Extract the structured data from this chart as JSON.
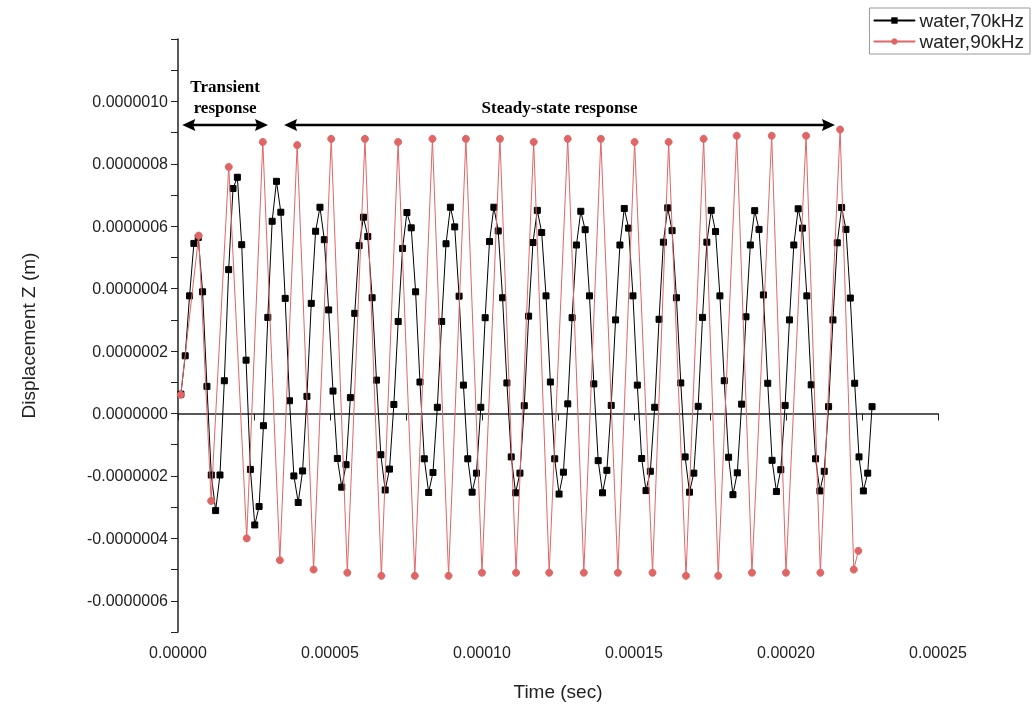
{
  "chart_data": {
    "type": "line",
    "xlabel": "Time (sec)",
    "ylabel": "Displacement Z (m)",
    "legend": "top right",
    "xlim": [
      0,
      0.00025
    ],
    "ylim": [
      -7e-07,
      1.2e-06
    ],
    "xticks": [
      {
        "value": 0,
        "label": "0.00000"
      },
      {
        "value": 2.5e-05,
        "label": null
      },
      {
        "value": 5e-05,
        "label": "0.00005"
      },
      {
        "value": 7.5e-05,
        "label": null
      },
      {
        "value": 0.0001,
        "label": "0.00010"
      },
      {
        "value": 0.000125,
        "label": null
      },
      {
        "value": 0.00015,
        "label": "0.00015"
      },
      {
        "value": 0.000175,
        "label": null
      },
      {
        "value": 0.0002,
        "label": "0.00020"
      },
      {
        "value": 0.000225,
        "label": null
      },
      {
        "value": 0.00025,
        "label": "0.00025"
      }
    ],
    "yticks": [
      {
        "value": -7e-07,
        "label": null
      },
      {
        "value": -6e-07,
        "label": "-0.0000006"
      },
      {
        "value": -5e-07,
        "label": null
      },
      {
        "value": -4e-07,
        "label": "-0.0000004"
      },
      {
        "value": -3e-07,
        "label": null
      },
      {
        "value": -2e-07,
        "label": "-0.0000002"
      },
      {
        "value": -1e-07,
        "label": null
      },
      {
        "value": 0,
        "label": "0.0000000"
      },
      {
        "value": 1e-07,
        "label": null
      },
      {
        "value": 2e-07,
        "label": "0.0000002"
      },
      {
        "value": 3e-07,
        "label": null
      },
      {
        "value": 4e-07,
        "label": "0.0000004"
      },
      {
        "value": 5e-07,
        "label": null
      },
      {
        "value": 6e-07,
        "label": "0.0000006"
      },
      {
        "value": 7e-07,
        "label": null
      },
      {
        "value": 8e-07,
        "label": "0.0000008"
      },
      {
        "value": 9e-07,
        "label": null
      },
      {
        "value": 1e-06,
        "label": "0.0000010"
      },
      {
        "value": 1.1e-06,
        "label": null
      },
      {
        "value": 1.2e-06,
        "label": null
      }
    ],
    "annotations": [
      "Transient response",
      "Steady-state response"
    ],
    "series": [
      {
        "name": "water,70kHz",
        "color": "#000000",
        "marker": "square",
        "x": [
          9.4e-07,
          2.37e-06,
          3.8e-06,
          5.23e-06,
          6.66e-06,
          8.09e-06,
          9.52e-06,
          1.095e-05,
          1.238e-05,
          1.381e-05,
          1.524e-05,
          1.667e-05,
          1.81e-05,
          1.953e-05,
          2.096e-05,
          2.239e-05,
          2.382e-05,
          2.525e-05,
          2.668e-05,
          2.811e-05,
          2.954e-05,
          3.097e-05,
          3.24e-05,
          3.383e-05,
          3.526e-05,
          3.669e-05,
          3.812e-05,
          3.955e-05,
          4.098e-05,
          4.241e-05,
          4.384e-05,
          4.527e-05,
          4.67e-05,
          4.813e-05,
          4.956e-05,
          5.099e-05,
          5.242e-05,
          5.385e-05,
          5.528e-05,
          5.671e-05,
          5.814e-05,
          5.957e-05,
          6.1e-05,
          6.243e-05,
          6.386e-05,
          6.529e-05,
          6.672e-05,
          6.815e-05,
          6.958e-05,
          7.101e-05,
          7.244e-05,
          7.387e-05,
          7.53e-05,
          7.673e-05,
          7.816e-05,
          7.959e-05,
          8.102e-05,
          8.245e-05,
          8.388e-05,
          8.531e-05,
          8.674e-05,
          8.817e-05,
          8.96e-05,
          9.103e-05,
          9.246e-05,
          9.389e-05,
          9.532e-05,
          9.675e-05,
          9.818e-05,
          9.961e-05,
          0.00010104,
          0.00010247,
          0.0001039,
          0.00010533,
          0.00010676,
          0.00010819,
          0.00010962,
          0.00011105,
          0.00011248,
          0.00011391,
          0.00011534,
          0.00011677,
          0.0001182,
          0.00011963,
          0.00012106,
          0.00012249,
          0.00012392,
          0.00012535,
          0.00012678,
          0.00012821,
          0.00012964,
          0.00013107,
          0.0001325,
          0.00013393,
          0.00013536,
          0.00013679,
          0.00013822,
          0.00013965,
          0.00014108,
          0.00014251,
          0.00014394,
          0.00014537,
          0.0001468,
          0.00014823,
          0.00014966,
          0.00015109,
          0.00015252,
          0.00015395,
          0.00015538,
          0.00015681,
          0.00015824,
          0.00015967,
          0.0001611,
          0.00016253,
          0.00016396,
          0.00016539,
          0.00016682,
          0.00016825,
          0.00016968,
          0.00017111,
          0.00017254,
          0.00017397,
          0.0001754,
          0.00017683,
          0.00017826,
          0.00017969,
          0.00018112,
          0.00018255,
          0.00018398,
          0.00018541,
          0.00018684,
          0.00018827,
          0.0001897,
          0.00019113,
          0.00019256,
          0.00019399,
          0.00019542,
          0.00019685,
          0.00019828,
          0.00019971,
          0.00020114,
          0.00020257,
          0.000204,
          0.00020543,
          0.00020686,
          0.00020829,
          0.00020972,
          0.00021115,
          0.00021258,
          0.00021401,
          0.00021544,
          0.00021687,
          0.0002183,
          0.00021973,
          0.00022116,
          0.00022259,
          0.00022402,
          0.00022545,
          0.00022688,
          0.00022831
        ],
        "values": [
          6.2e-08,
          1.85e-07,
          3.77e-07,
          5.45e-07,
          5.64e-07,
          3.9e-07,
          8.7e-08,
          -1.97e-07,
          -3.11e-07,
          -1.97e-07,
          1.05e-07,
          4.61e-07,
          7.21e-07,
          7.57e-07,
          5.41e-07,
          1.71e-07,
          -1.79e-07,
          -3.57e-07,
          -2.98e-07,
          -3.9e-08,
          3.08e-07,
          6.16e-07,
          7.44e-07,
          6.45e-07,
          3.69e-07,
          4.1e-08,
          -2e-07,
          -2.85e-07,
          -1.84e-07,
          5.5e-08,
          3.53e-07,
          5.84e-07,
          6.61e-07,
          5.57e-07,
          3.32e-07,
          7.2e-08,
          -1.44e-07,
          -2.36e-07,
          -1.64e-07,
          5.1e-08,
          3.21e-07,
          5.38e-07,
          6.29e-07,
          5.67e-07,
          3.71e-07,
          1.07e-07,
          -1.32e-07,
          -2.45e-07,
          -1.78e-07,
          2.9e-08,
          2.95e-07,
          5.29e-07,
          6.44e-07,
          5.95e-07,
          3.9e-07,
          1.01e-07,
          -1.45e-07,
          -2.53e-07,
          -1.89e-07,
          2e-08,
          2.95e-07,
          5.44e-07,
          6.61e-07,
          5.98e-07,
          3.76e-07,
          9.1e-08,
          -1.45e-07,
          -2.52e-07,
          -1.91e-07,
          2e-08,
          3.07e-07,
          5.51e-07,
          6.61e-07,
          5.85e-07,
          3.71e-07,
          9.8e-08,
          -1.39e-07,
          -2.54e-07,
          -1.91e-07,
          2.5e-08,
          3.12e-07,
          5.48e-07,
          6.51e-07,
          5.8e-07,
          3.77e-07,
          1.01e-07,
          -1.45e-07,
          -2.58e-07,
          -1.88e-07,
          3.1e-08,
          3.07e-07,
          5.4e-07,
          6.48e-07,
          5.89e-07,
          3.77e-07,
          9.5e-08,
          -1.51e-07,
          -2.54e-07,
          -1.82e-07,
          2.6e-08,
          3e-07,
          5.4e-07,
          6.57e-07,
          5.94e-07,
          3.77e-07,
          9.1e-08,
          -1.44e-07,
          -2.47e-07,
          -1.85e-07,
          2e-08,
          3.02e-07,
          5.49e-07,
          6.59e-07,
          5.86e-07,
          3.71e-07,
          9.8e-08,
          -1.39e-07,
          -2.52e-07,
          -1.91e-07,
          2.3e-08,
          3.08e-07,
          5.49e-07,
          6.51e-07,
          5.83e-07,
          3.77e-07,
          1.05e-07,
          -1.4e-07,
          -2.6e-07,
          -1.9e-07,
          3e-08,
          3.1e-07,
          5.4e-07,
          6.5e-07,
          5.9e-07,
          3.8e-07,
          9.7e-08,
          -1.5e-07,
          -2.5e-07,
          -1.8e-07,
          2.6e-08,
          3e-07,
          5.4e-07,
          6.56e-07,
          5.94e-07,
          3.77e-07,
          9.2e-08,
          -1.45e-07,
          -2.48e-07,
          -1.85e-07,
          2.2e-08,
          3e-07,
          5.47e-07,
          6.6e-07,
          5.9e-07,
          3.7e-07,
          9.7e-08,
          -1.39e-07,
          -2.48e-07,
          -1.91e-07,
          2.2e-08
        ]
      },
      {
        "name": "water,90kHz",
        "color": "#e06666",
        "marker": "circle",
        "x": [
          9e-07,
          6.8e-06,
          1.09e-05,
          1.67e-05,
          2.26e-05,
          2.79e-05,
          3.35e-05,
          3.92e-05,
          4.46e-05,
          5.04e-05,
          5.57e-05,
          6.15e-05,
          6.69e-05,
          7.24e-05,
          7.79e-05,
          8.37e-05,
          8.9e-05,
          9.47e-05,
          0.0001,
          0.0001059,
          0.0001112,
          0.000117,
          0.0001221,
          0.0001282,
          0.0001335,
          0.0001391,
          0.0001447,
          0.0001502,
          0.0001561,
          0.0001614,
          0.0001671,
          0.0001729,
          0.0001777,
          0.0001838,
          0.0001888,
          0.0001953,
          0.0002,
          0.0002066,
          0.0002113,
          0.0002178,
          0.0002223,
          0.0002238
        ],
        "values": [
          6e-08,
          5.7e-07,
          -2.8e-07,
          7.9e-07,
          -4e-07,
          8.7e-07,
          -4.7e-07,
          8.6e-07,
          -5e-07,
          8.8e-07,
          -5.1e-07,
          8.8e-07,
          -5.2e-07,
          8.7e-07,
          -5.2e-07,
          8.8e-07,
          -5.2e-07,
          8.8e-07,
          -5.1e-07,
          8.8e-07,
          -5.1e-07,
          8.7e-07,
          -5.1e-07,
          8.8e-07,
          -5.1e-07,
          8.8e-07,
          -5.1e-07,
          8.7e-07,
          -5.1e-07,
          8.7e-07,
          -5.2e-07,
          8.8e-07,
          -5.2e-07,
          8.9e-07,
          -5.1e-07,
          8.9e-07,
          -5.1e-07,
          8.9e-07,
          -5.1e-07,
          9.1e-07,
          -5e-07,
          -4.4e-07
        ]
      }
    ]
  }
}
